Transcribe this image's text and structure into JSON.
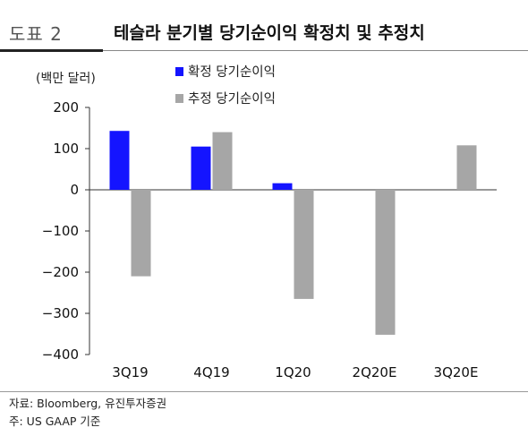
{
  "header": {
    "fig_no": "도표 2",
    "title": "테슬라 분기별 당기순이익 확정치 및 추정치"
  },
  "chart_data": {
    "type": "bar",
    "unit_label": "(백만 달러)",
    "categories": [
      "3Q19",
      "4Q19",
      "1Q20",
      "2Q20E",
      "3Q20E"
    ],
    "series": [
      {
        "name": "확정 당기순이익",
        "color": "#1414ff",
        "values": [
          143,
          105,
          16,
          null,
          null
        ]
      },
      {
        "name": "추정 당기순이익",
        "color": "#a6a6a6",
        "values": [
          -210,
          140,
          -265,
          -352,
          108
        ]
      }
    ],
    "ylim": [
      -400,
      200
    ],
    "yticks": [
      200,
      100,
      0,
      -100,
      -200,
      -300,
      -400
    ],
    "ytick_labels": [
      "200",
      "100",
      "0",
      "−100",
      "−200",
      "−300",
      "−400"
    ],
    "legend_position": "top-center",
    "grid": false
  },
  "footer": {
    "source": "자료: Bloomberg, 유진투자증권",
    "note": "주: US GAAP 기준"
  }
}
